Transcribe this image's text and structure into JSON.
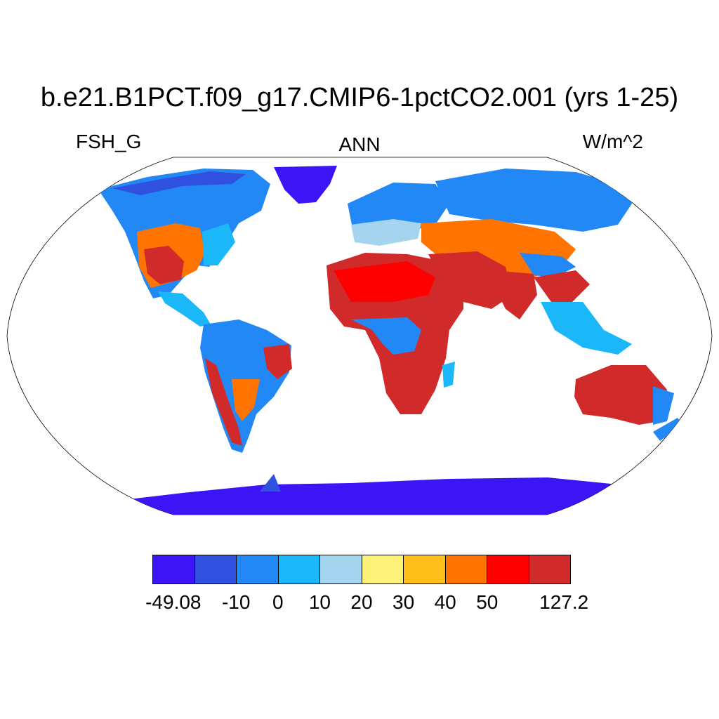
{
  "title": "b.e21.B1PCT.f09_g17.CMIP6-1pctCO2.001 (yrs 1-25)",
  "left_label": "FSH_G",
  "center_label": "ANN",
  "right_label": "W/m^2",
  "colorbar": {
    "colors": [
      "#3c14f5",
      "#3050e0",
      "#2288f5",
      "#1ab8f8",
      "#a4d4ee",
      "#fff27a",
      "#ffbe1a",
      "#ff7400",
      "#ff0000",
      "#d12a2a"
    ],
    "labels": [
      "-49.08",
      "-10",
      "0",
      "10",
      "20",
      "30",
      "40",
      "50",
      "127.2"
    ],
    "label_boundaries": [
      0,
      2,
      3,
      4,
      5,
      6,
      7,
      8,
      10
    ]
  },
  "map": {
    "projection": "robinson",
    "variable": "FSH_G",
    "season": "ANN"
  }
}
